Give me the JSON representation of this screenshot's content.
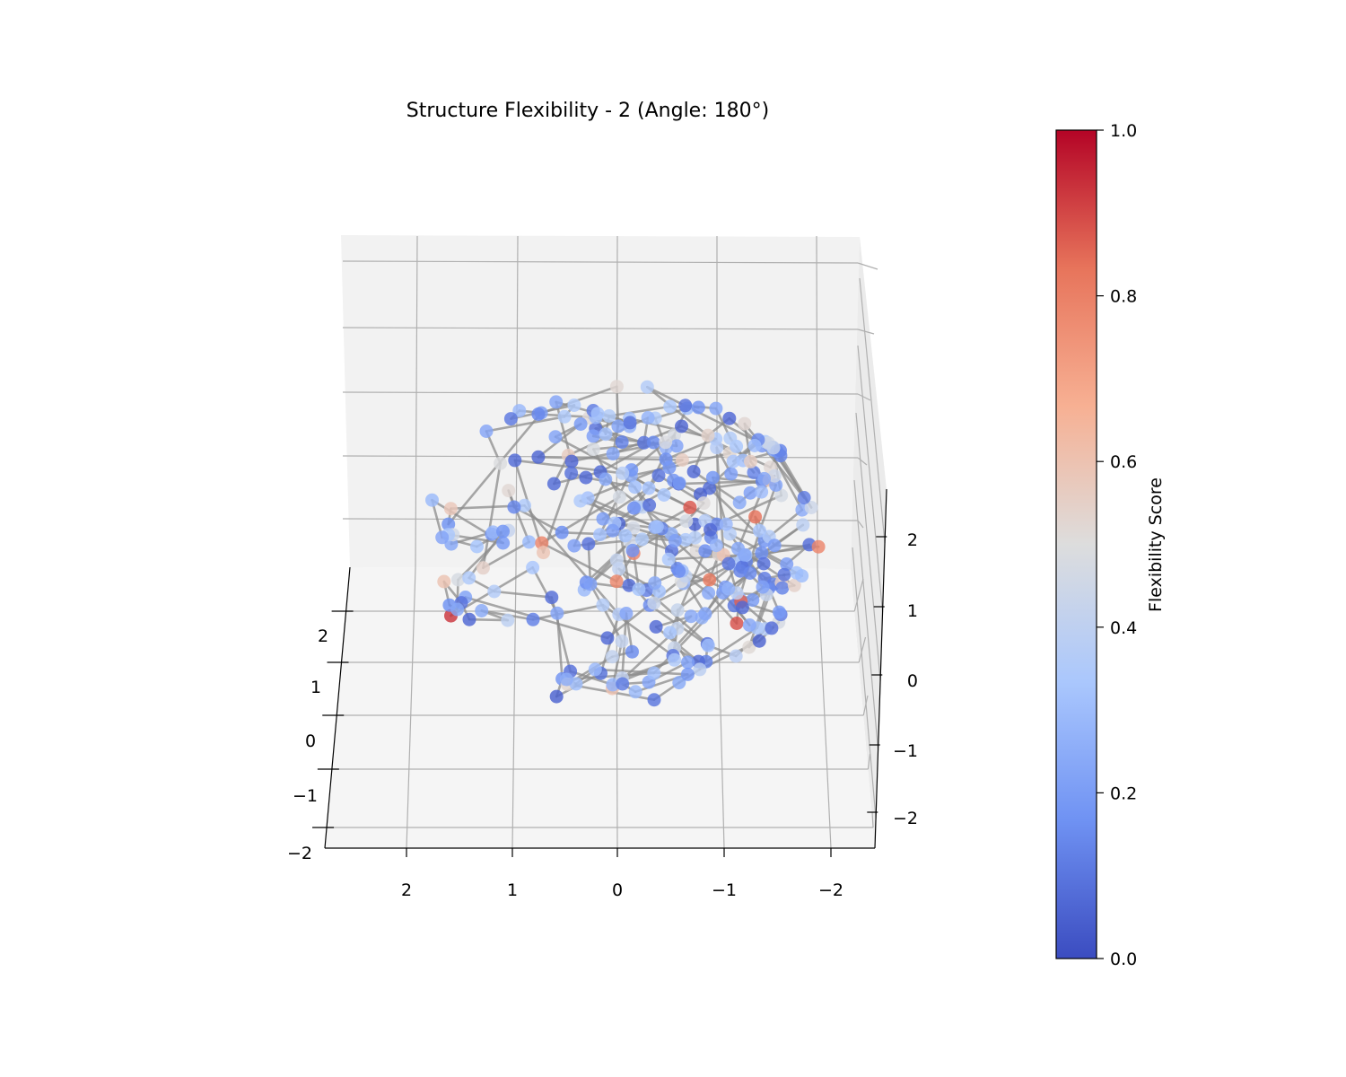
{
  "chart_data": {
    "type": "scatter",
    "projection": "3d",
    "title": "Structure Flexibility - 2 (Angle: 180°)",
    "view": {
      "azimuth_deg": 180
    },
    "axes": {
      "x": {
        "range": [
          -2.5,
          2.5
        ],
        "ticks": [
          2,
          1,
          0,
          -1,
          -2
        ],
        "tick_labels": [
          "2",
          "1",
          "0",
          "−1",
          "−2"
        ],
        "label": ""
      },
      "y": {
        "range": [
          -2.2,
          2.6
        ],
        "ticks": [
          2,
          1,
          0,
          -1,
          -2
        ],
        "tick_labels": [
          "2",
          "1",
          "0",
          "−1",
          "−2"
        ],
        "label": ""
      },
      "z": {
        "range": [
          -2.5,
          2.5
        ],
        "ticks": [
          -2,
          -1,
          0,
          1,
          2
        ],
        "tick_labels": [
          "−2",
          "−1",
          "0",
          "1",
          "2"
        ],
        "label": ""
      }
    },
    "grid": true,
    "colorbar": {
      "label": "Flexibility Score",
      "colormap": "coolwarm",
      "range": [
        0,
        1
      ],
      "ticks": [
        0.0,
        0.2,
        0.4,
        0.6,
        0.8,
        1.0
      ],
      "tick_labels": [
        "0.0",
        "0.2",
        "0.4",
        "0.6",
        "0.8",
        "1.0"
      ],
      "stops": [
        "#3b4cc0",
        "#6f92f3",
        "#aac7fd",
        "#dddddd",
        "#f7b093",
        "#e7745b",
        "#b40426"
      ]
    },
    "atoms": {
      "count": 300,
      "point_color_by": "Flexibility Score",
      "bonds": "consecutive atoms connected"
    }
  }
}
